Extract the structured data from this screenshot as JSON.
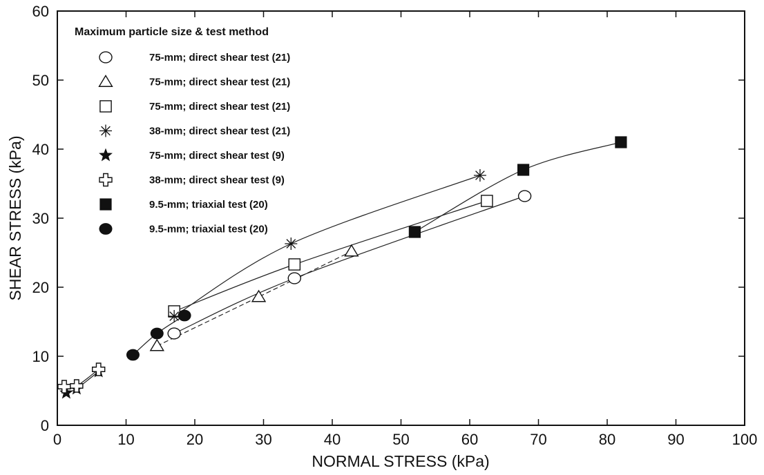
{
  "chart_data": {
    "type": "scatter",
    "xlabel": "NORMAL STRESS (kPa)",
    "ylabel": "SHEAR STRESS (kPa)",
    "xlim": [
      0,
      100
    ],
    "ylim": [
      0,
      60
    ],
    "xticks": [
      0,
      10,
      20,
      30,
      40,
      50,
      60,
      70,
      80,
      90,
      100
    ],
    "yticks": [
      0,
      10,
      20,
      30,
      40,
      50,
      60
    ],
    "grid": false,
    "legend_title": "Maximum particle size & test method",
    "legend_position": "top-left",
    "series": [
      {
        "name": "75-mm; direct shear test (21)",
        "marker": "open-circle",
        "line": "solid",
        "x": [
          17,
          34.5,
          68
        ],
        "y": [
          13.3,
          21.3,
          33.2
        ]
      },
      {
        "name": "75-mm; direct shear test (21)",
        "marker": "open-triangle",
        "line": "dashed",
        "x": [
          14.5,
          29.3,
          42.8
        ],
        "y": [
          11.5,
          18.6,
          25.2
        ]
      },
      {
        "name": "75-mm; direct shear test (21)",
        "marker": "open-square",
        "line": "solid",
        "x": [
          17,
          34.5,
          62.5
        ],
        "y": [
          16.5,
          23.3,
          32.5
        ]
      },
      {
        "name": "38-mm; direct shear test (21)",
        "marker": "asterisk",
        "line": "solid",
        "x": [
          17,
          34,
          61.5
        ],
        "y": [
          15.8,
          26.3,
          36.2
        ]
      },
      {
        "name": "75-mm; direct shear test (9)",
        "marker": "filled-star",
        "line": "solid",
        "x": [
          1.3,
          2.8,
          6
        ],
        "y": [
          4.7,
          5.3,
          7.8
        ]
      },
      {
        "name": "38-mm; direct shear test (9)",
        "marker": "open-cross",
        "line": "solid",
        "x": [
          1,
          2.8,
          6
        ],
        "y": [
          5.6,
          5.7,
          8.1
        ]
      },
      {
        "name": "9.5-mm; triaxial test (20)",
        "marker": "filled-square",
        "line": "solid",
        "x": [
          52,
          67.8,
          82
        ],
        "y": [
          28,
          37,
          41
        ]
      },
      {
        "name": "9.5-mm; triaxial test (20)",
        "marker": "filled-circle",
        "line": "solid",
        "x": [
          11,
          14.5,
          18.5
        ],
        "y": [
          10.2,
          13.3,
          15.9
        ]
      }
    ]
  }
}
